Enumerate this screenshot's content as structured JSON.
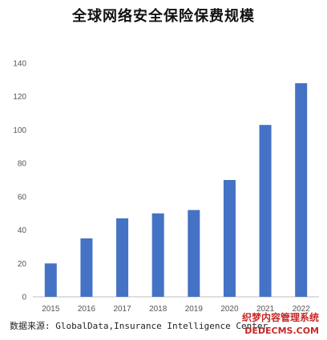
{
  "chart_data": {
    "type": "bar",
    "title": "全球网络安全保险保费规模",
    "categories": [
      "2015",
      "2016",
      "2017",
      "2018",
      "2019",
      "2020",
      "2021",
      "2022"
    ],
    "values": [
      20,
      35,
      47,
      50,
      52,
      70,
      103,
      128
    ],
    "ylim": [
      0,
      140
    ],
    "yticks": [
      0,
      20,
      40,
      60,
      80,
      100,
      120,
      140
    ],
    "grid": false,
    "bar_color": "#4472C4"
  },
  "source": "数据来源: GlobalData,Insurance Intelligence Center",
  "watermark": {
    "line1": "织梦内容管理系统",
    "line2": "DEDECMS.COM"
  }
}
